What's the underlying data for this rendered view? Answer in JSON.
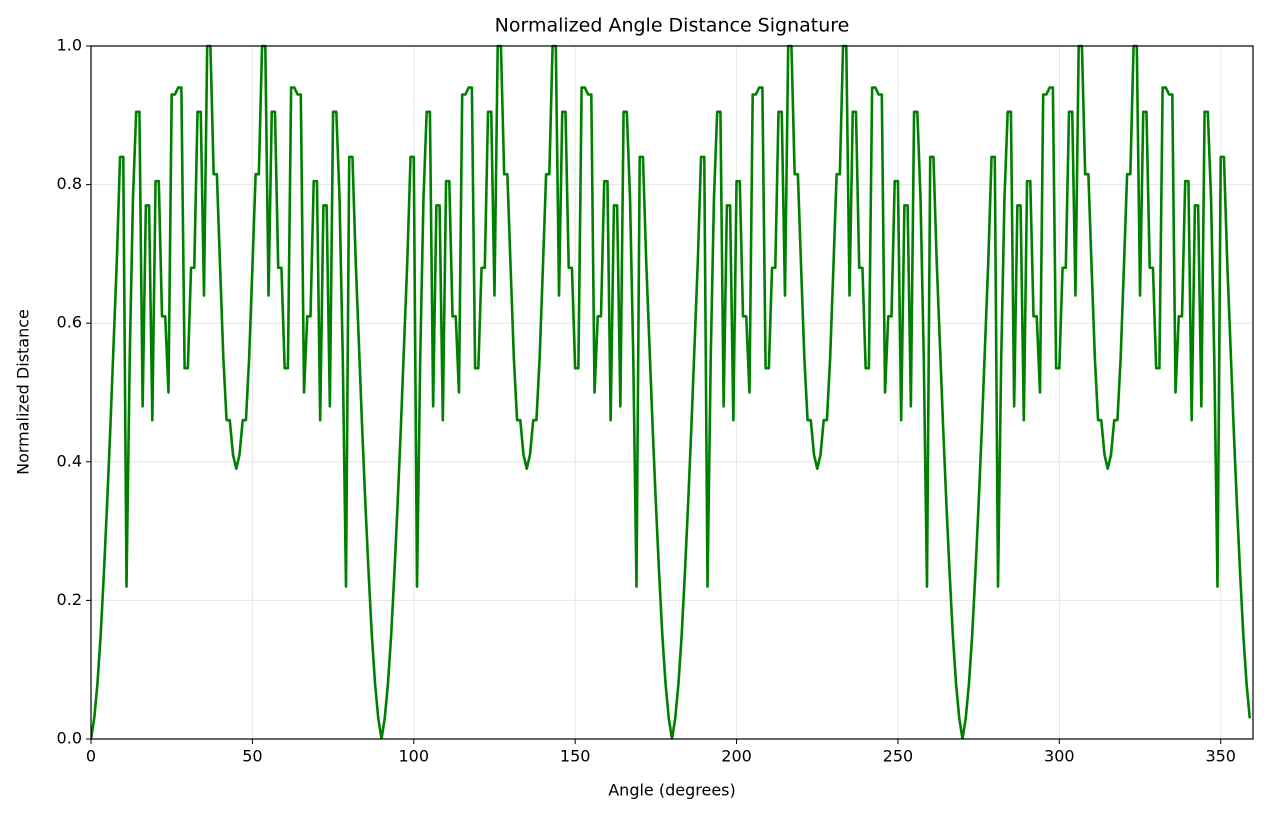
{
  "chart_data": {
    "type": "line",
    "title": "Normalized Angle Distance Signature",
    "x_label": "Angle (degrees)",
    "y_label": "Normalized Distance",
    "x": [
      0,
      1,
      2,
      3,
      4,
      5,
      6,
      7,
      8,
      9,
      10,
      11,
      12,
      13,
      14,
      15,
      16,
      17,
      18,
      19,
      20,
      21,
      22,
      23,
      24,
      25,
      26,
      27,
      28,
      29,
      30,
      31,
      32,
      33,
      34,
      35,
      36,
      37,
      38,
      39,
      40,
      41,
      42,
      43,
      44,
      45,
      46,
      47,
      48,
      49,
      50,
      51,
      52,
      53,
      54,
      55,
      56,
      57,
      58,
      59,
      60,
      61,
      62,
      63,
      64,
      65,
      66,
      67,
      68,
      69,
      70,
      71,
      72,
      73,
      74,
      75,
      76,
      77,
      78,
      79,
      80,
      81,
      82,
      83,
      84,
      85,
      86,
      87,
      88,
      89,
      90,
      91,
      92,
      93,
      94,
      95,
      96,
      97,
      98,
      99,
      100,
      101,
      102,
      103,
      104,
      105,
      106,
      107,
      108,
      109,
      110,
      111,
      112,
      113,
      114,
      115,
      116,
      117,
      118,
      119,
      120,
      121,
      122,
      123,
      124,
      125,
      126,
      127,
      128,
      129,
      130,
      131,
      132,
      133,
      134,
      135,
      136,
      137,
      138,
      139,
      140,
      141,
      142,
      143,
      144,
      145,
      146,
      147,
      148,
      149,
      150,
      151,
      152,
      153,
      154,
      155,
      156,
      157,
      158,
      159,
      160,
      161,
      162,
      163,
      164,
      165,
      166,
      167,
      168,
      169,
      170,
      171,
      172,
      173,
      174,
      175,
      176,
      177,
      178,
      179,
      180,
      181,
      182,
      183,
      184,
      185,
      186,
      187,
      188,
      189,
      190,
      191,
      192,
      193,
      194,
      195,
      196,
      197,
      198,
      199,
      200,
      201,
      202,
      203,
      204,
      205,
      206,
      207,
      208,
      209,
      210,
      211,
      212,
      213,
      214,
      215,
      216,
      217,
      218,
      219,
      220,
      221,
      222,
      223,
      224,
      225,
      226,
      227,
      228,
      229,
      230,
      231,
      232,
      233,
      234,
      235,
      236,
      237,
      238,
      239,
      240,
      241,
      242,
      243,
      244,
      245,
      246,
      247,
      248,
      249,
      250,
      251,
      252,
      253,
      254,
      255,
      256,
      257,
      258,
      259,
      260,
      261,
      262,
      263,
      264,
      265,
      266,
      267,
      268,
      269,
      270,
      271,
      272,
      273,
      274,
      275,
      276,
      277,
      278,
      279,
      280,
      281,
      282,
      283,
      284,
      285,
      286,
      287,
      288,
      289,
      290,
      291,
      292,
      293,
      294,
      295,
      296,
      297,
      298,
      299,
      300,
      301,
      302,
      303,
      304,
      305,
      306,
      307,
      308,
      309,
      310,
      311,
      312,
      313,
      314,
      315,
      316,
      317,
      318,
      319,
      320,
      321,
      322,
      323,
      324,
      325,
      326,
      327,
      328,
      329,
      330,
      331,
      332,
      333,
      334,
      335,
      336,
      337,
      338,
      339,
      340,
      341,
      342,
      343,
      344,
      345,
      346,
      347,
      348,
      349,
      350,
      351,
      352,
      353,
      354,
      355,
      356,
      357,
      358,
      359
    ],
    "series": [
      {
        "name": "Normalized Distance",
        "color": "#008000",
        "values": [
          0,
          0.03,
          0.08,
          0.15,
          0.24,
          0.34,
          0.45,
          0.57,
          0.69,
          0.84,
          0.84,
          0.22,
          0.55,
          0.78,
          0.905,
          0.905,
          0.48,
          0.77,
          0.77,
          0.46,
          0.805,
          0.805,
          0.61,
          0.61,
          0.5,
          0.93,
          0.93,
          0.94,
          0.94,
          0.535,
          0.535,
          0.68,
          0.68,
          0.905,
          0.905,
          0.64,
          1,
          1,
          0.815,
          0.815,
          0.68,
          0.55,
          0.46,
          0.46,
          0.41,
          0.39,
          0.41,
          0.46,
          0.46,
          0.55,
          0.68,
          0.815,
          0.815,
          1,
          1,
          0.64,
          0.905,
          0.905,
          0.68,
          0.68,
          0.535,
          0.535,
          0.94,
          0.94,
          0.93,
          0.93,
          0.5,
          0.61,
          0.61,
          0.805,
          0.805,
          0.46,
          0.77,
          0.77,
          0.48,
          0.905,
          0.905,
          0.78,
          0.55,
          0.22,
          0.84,
          0.84,
          0.69,
          0.57,
          0.45,
          0.34,
          0.24,
          0.15,
          0.08,
          0.03,
          0,
          0.03,
          0.08,
          0.15,
          0.24,
          0.34,
          0.45,
          0.57,
          0.69,
          0.84,
          0.84,
          0.22,
          0.55,
          0.78,
          0.905,
          0.905,
          0.48,
          0.77,
          0.77,
          0.46,
          0.805,
          0.805,
          0.61,
          0.61,
          0.5,
          0.93,
          0.93,
          0.94,
          0.94,
          0.535,
          0.535,
          0.68,
          0.68,
          0.905,
          0.905,
          0.64,
          1,
          1,
          0.815,
          0.815,
          0.68,
          0.55,
          0.46,
          0.46,
          0.41,
          0.39,
          0.41,
          0.46,
          0.46,
          0.55,
          0.68,
          0.815,
          0.815,
          1,
          1,
          0.64,
          0.905,
          0.905,
          0.68,
          0.68,
          0.535,
          0.535,
          0.94,
          0.94,
          0.93,
          0.93,
          0.5,
          0.61,
          0.61,
          0.805,
          0.805,
          0.46,
          0.77,
          0.77,
          0.48,
          0.905,
          0.905,
          0.78,
          0.55,
          0.22,
          0.84,
          0.84,
          0.69,
          0.57,
          0.45,
          0.34,
          0.24,
          0.15,
          0.08,
          0.03,
          0,
          0.03,
          0.08,
          0.15,
          0.24,
          0.34,
          0.45,
          0.57,
          0.69,
          0.84,
          0.84,
          0.22,
          0.55,
          0.78,
          0.905,
          0.905,
          0.48,
          0.77,
          0.77,
          0.46,
          0.805,
          0.805,
          0.61,
          0.61,
          0.5,
          0.93,
          0.93,
          0.94,
          0.94,
          0.535,
          0.535,
          0.68,
          0.68,
          0.905,
          0.905,
          0.64,
          1,
          1,
          0.815,
          0.815,
          0.68,
          0.55,
          0.46,
          0.46,
          0.41,
          0.39,
          0.41,
          0.46,
          0.46,
          0.55,
          0.68,
          0.815,
          0.815,
          1,
          1,
          0.64,
          0.905,
          0.905,
          0.68,
          0.68,
          0.535,
          0.535,
          0.94,
          0.94,
          0.93,
          0.93,
          0.5,
          0.61,
          0.61,
          0.805,
          0.805,
          0.46,
          0.77,
          0.77,
          0.48,
          0.905,
          0.905,
          0.78,
          0.55,
          0.22,
          0.84,
          0.84,
          0.69,
          0.57,
          0.45,
          0.34,
          0.24,
          0.15,
          0.08,
          0.03,
          0,
          0.03,
          0.08,
          0.15,
          0.24,
          0.34,
          0.45,
          0.57,
          0.69,
          0.84,
          0.84,
          0.22,
          0.55,
          0.78,
          0.905,
          0.905,
          0.48,
          0.77,
          0.77,
          0.46,
          0.805,
          0.805,
          0.61,
          0.61,
          0.5,
          0.93,
          0.93,
          0.94,
          0.94,
          0.535,
          0.535,
          0.68,
          0.68,
          0.905,
          0.905,
          0.64,
          1,
          1,
          0.815,
          0.815,
          0.68,
          0.55,
          0.46,
          0.46,
          0.41,
          0.39,
          0.41,
          0.46,
          0.46,
          0.55,
          0.68,
          0.815,
          0.815,
          1,
          1,
          0.64,
          0.905,
          0.905,
          0.68,
          0.68,
          0.535,
          0.535,
          0.94,
          0.94,
          0.93,
          0.93,
          0.5,
          0.61,
          0.61,
          0.805,
          0.805,
          0.46,
          0.77,
          0.77,
          0.48,
          0.905,
          0.905,
          0.78,
          0.55,
          0.22,
          0.84,
          0.84,
          0.69,
          0.57,
          0.45,
          0.34,
          0.24,
          0.15,
          0.08,
          0.03
        ]
      }
    ],
    "xlim": [
      0,
      360
    ],
    "xticks": [
      0,
      50,
      100,
      150,
      200,
      250,
      300,
      350
    ],
    "ylim": [
      0,
      1
    ],
    "yticks": [
      {
        "value": 0,
        "label": "0.0"
      },
      0.2,
      0.4,
      0.6,
      0.8,
      {
        "value": 1,
        "label": "1.0"
      }
    ],
    "grid": true
  }
}
